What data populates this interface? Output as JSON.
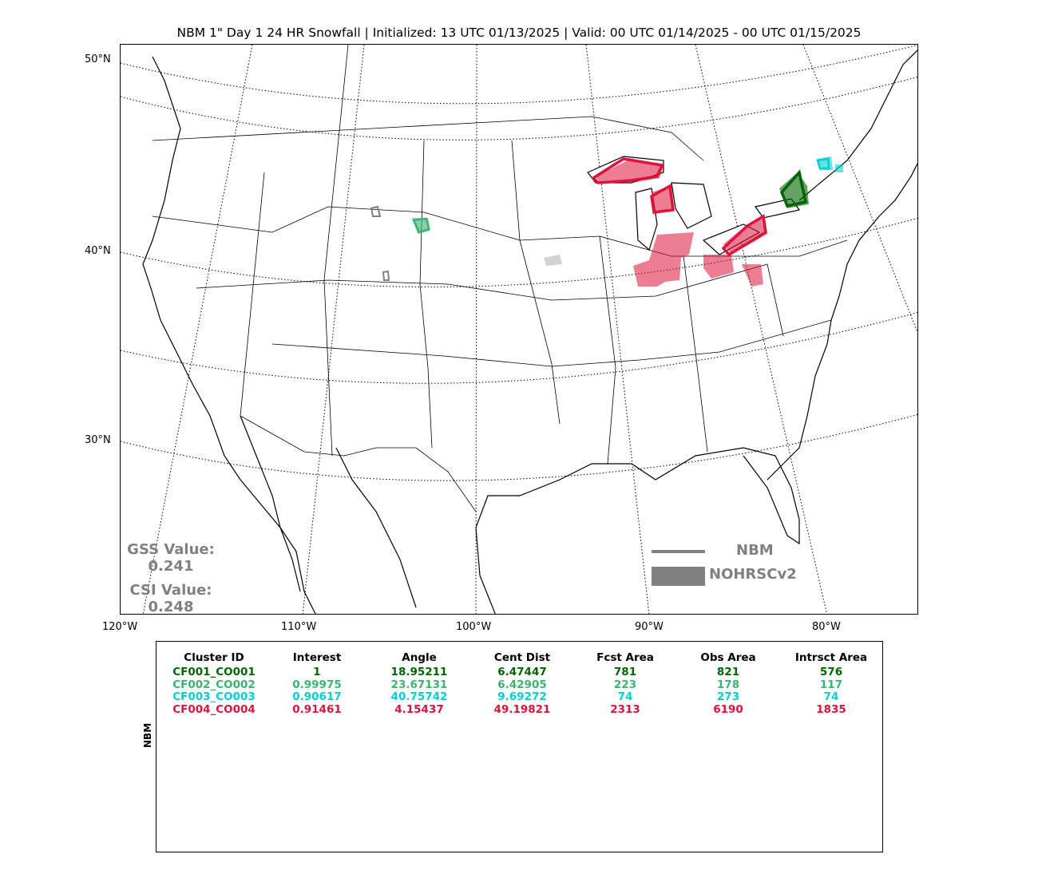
{
  "title": "NBM 1\" Day 1 24 HR Snowfall | Initialized: 13 UTC 01/13/2025 | Valid: 00 UTC 01/14/2025 - 00 UTC 01/15/2025",
  "map": {
    "lat_labels": [
      "50°N",
      "40°N",
      "30°N"
    ],
    "lon_labels": [
      "120°W",
      "110°W",
      "100°W",
      "90°W",
      "80°W"
    ],
    "legend": {
      "line_label": "NBM",
      "fill_label": "NOHRSCv2",
      "color": "#808080"
    },
    "stats": {
      "gss_label": "GSS Value:",
      "gss_value": "0.241",
      "csi_label": "CSI Value:",
      "csi_value": "0.248"
    },
    "colors": {
      "CF001": "#006400",
      "CF002": "#3cb371",
      "CF003": "#00ced1",
      "CF004": "#dc143c",
      "unmatched": "#808080",
      "unmatched_fill": "#d3d3d3"
    }
  },
  "table": {
    "side_label": "NBM",
    "headers": [
      "Cluster ID",
      "Interest",
      "Angle",
      "Cent Dist",
      "Fcst Area",
      "Obs Area",
      "Intrsct Area"
    ],
    "rows": [
      {
        "color": "#006400",
        "cells": [
          "CF001_CO001",
          "1",
          "18.95211",
          "6.47447",
          "781",
          "821",
          "576"
        ]
      },
      {
        "color": "#3cb371",
        "cells": [
          "CF002_CO002",
          "0.99975",
          "23.67131",
          "6.42905",
          "223",
          "178",
          "117"
        ]
      },
      {
        "color": "#00ced1",
        "cells": [
          "CF003_CO003",
          "0.90617",
          "40.75742",
          "9.69272",
          "74",
          "273",
          "74"
        ]
      },
      {
        "color": "#dc143c",
        "cells": [
          "CF004_CO004",
          "0.91461",
          "4.15437",
          "49.19821",
          "2313",
          "6190",
          "1835"
        ]
      }
    ]
  }
}
